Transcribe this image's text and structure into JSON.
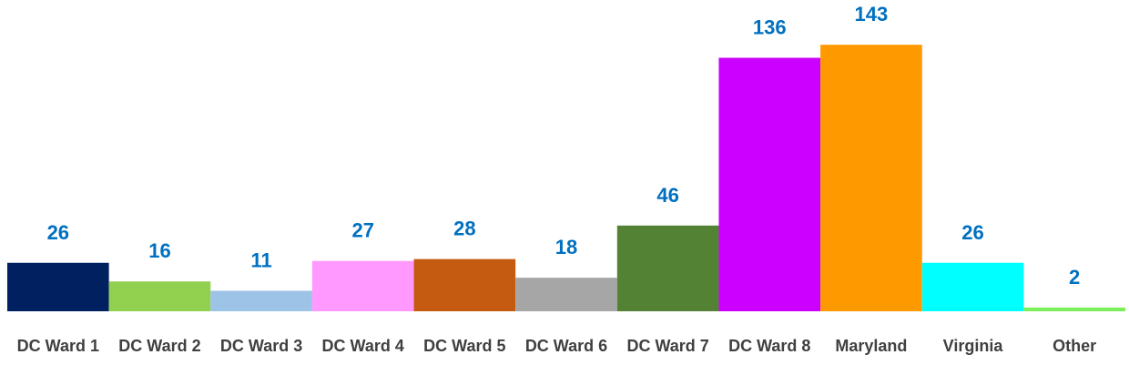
{
  "chart_data": {
    "type": "bar",
    "categories": [
      "DC Ward 1",
      "DC Ward 2",
      "DC Ward 3",
      "DC Ward 4",
      "DC Ward 5",
      "DC Ward 6",
      "DC Ward 7",
      "DC Ward 8",
      "Maryland",
      "Virginia",
      "Other"
    ],
    "values": [
      26,
      16,
      11,
      27,
      28,
      18,
      46,
      136,
      143,
      26,
      2
    ],
    "colors": [
      "#002060",
      "#92d050",
      "#9dc3e6",
      "#ff99ff",
      "#c55a11",
      "#a6a6a6",
      "#548235",
      "#cc00ff",
      "#ff9900",
      "#00ffff",
      "#7cf05a"
    ],
    "label_color": "#0070c0",
    "ylim": [
      0,
      167
    ]
  }
}
